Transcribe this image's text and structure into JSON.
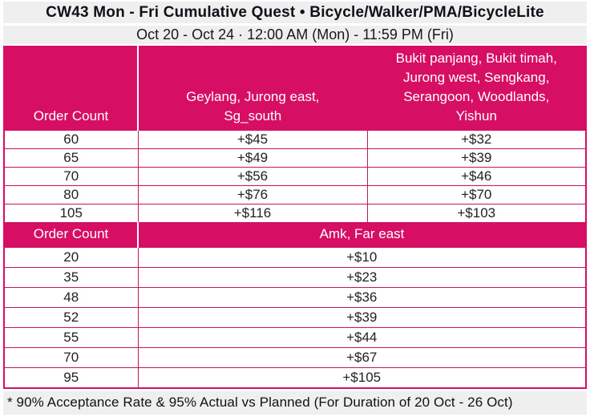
{
  "header": {
    "title": "CW43 Mon - Fri Cumulative Quest • Bicycle/Walker/PMA/BicycleLite",
    "date_range": "Oct 20 - Oct 24 · 12:00 AM (Mon) - 11:59 PM (Fri)"
  },
  "colors": {
    "brand_pink": "#D70F64",
    "header_text": "#FFFFFF",
    "band_background": "#EFEFEF",
    "body_text": "#222222"
  },
  "section1": {
    "header": {
      "order_count_label": "Order Count",
      "zone_a": "Geylang, Jurong east,\nSg_south",
      "zone_b": "Bukit panjang, Bukit timah,\nJurong west, Sengkang,\nSerangoon, Woodlands,\nYishun"
    },
    "rows": [
      {
        "order_count": "60",
        "zone_a_bonus": "+$45",
        "zone_b_bonus": "+$32"
      },
      {
        "order_count": "65",
        "zone_a_bonus": "+$49",
        "zone_b_bonus": "+$39"
      },
      {
        "order_count": "70",
        "zone_a_bonus": "+$56",
        "zone_b_bonus": "+$46"
      },
      {
        "order_count": "80",
        "zone_a_bonus": "+$76",
        "zone_b_bonus": "+$70"
      },
      {
        "order_count": "105",
        "zone_a_bonus": "+$116",
        "zone_b_bonus": "+$103"
      }
    ]
  },
  "section2": {
    "header": {
      "order_count_label": "Order Count",
      "zone": "Amk, Far east"
    },
    "rows": [
      {
        "order_count": "20",
        "bonus": "+$10"
      },
      {
        "order_count": "35",
        "bonus": "+$23"
      },
      {
        "order_count": "48",
        "bonus": "+$36"
      },
      {
        "order_count": "52",
        "bonus": "+$39"
      },
      {
        "order_count": "55",
        "bonus": "+$44"
      },
      {
        "order_count": "70",
        "bonus": "+$67"
      },
      {
        "order_count": "95",
        "bonus": "+$105"
      }
    ]
  },
  "footnote": "* 90% Acceptance Rate & 95% Actual vs Planned (For Duration of 20 Oct - 26 Oct)"
}
